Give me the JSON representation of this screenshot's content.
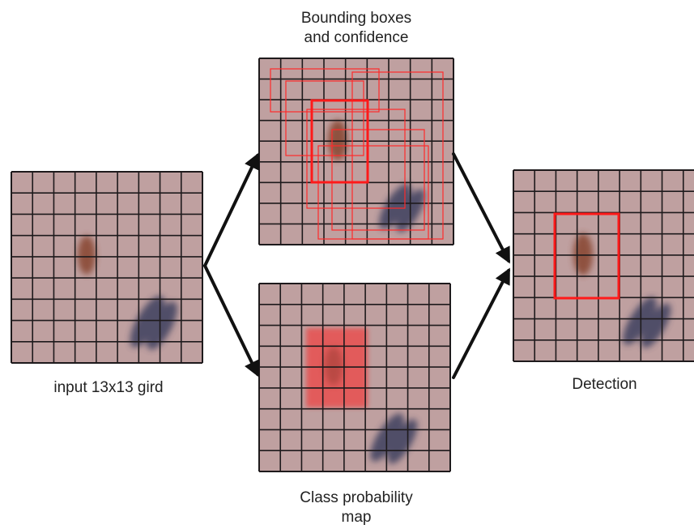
{
  "captions": {
    "input": "input 13x13 gird",
    "bbox_line1": "Bounding boxes",
    "bbox_line2": "and confidence",
    "class_line1": "Class probability",
    "class_line2": "map",
    "detection": "Detection"
  },
  "colors": {
    "panel_fill": "#bfa0a0",
    "grid_line": "#1e1a1c",
    "box_red": "#ff1a1a",
    "highlight_red": "#ee4444",
    "object_brown": "#8a4a36",
    "object_blue": "#3c3f5f",
    "arrow": "#111111"
  }
}
